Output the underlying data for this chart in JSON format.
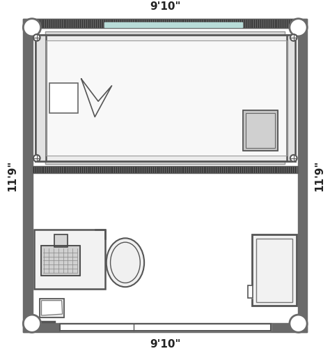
{
  "fig_width": 4.74,
  "fig_height": 5.03,
  "dpi": 100,
  "bg_color": "#ffffff",
  "wall_color": "#6a6a6a",
  "dim_top": "9'10\"",
  "dim_bottom": "9'10\"",
  "dim_left": "11'9\"",
  "dim_right": "11'9\"",
  "teal_color": "#b8dcd8",
  "light_gray": "#e0e0e0",
  "med_gray": "#c0c0c0",
  "bed_gray": "#d8d8d8",
  "line_color": "#555555",
  "OL": 28,
  "OR": 448,
  "OB": 20,
  "OT": 483,
  "IL": 42,
  "IR": 434,
  "IB": 34,
  "IT": 469,
  "corner_r": 13
}
